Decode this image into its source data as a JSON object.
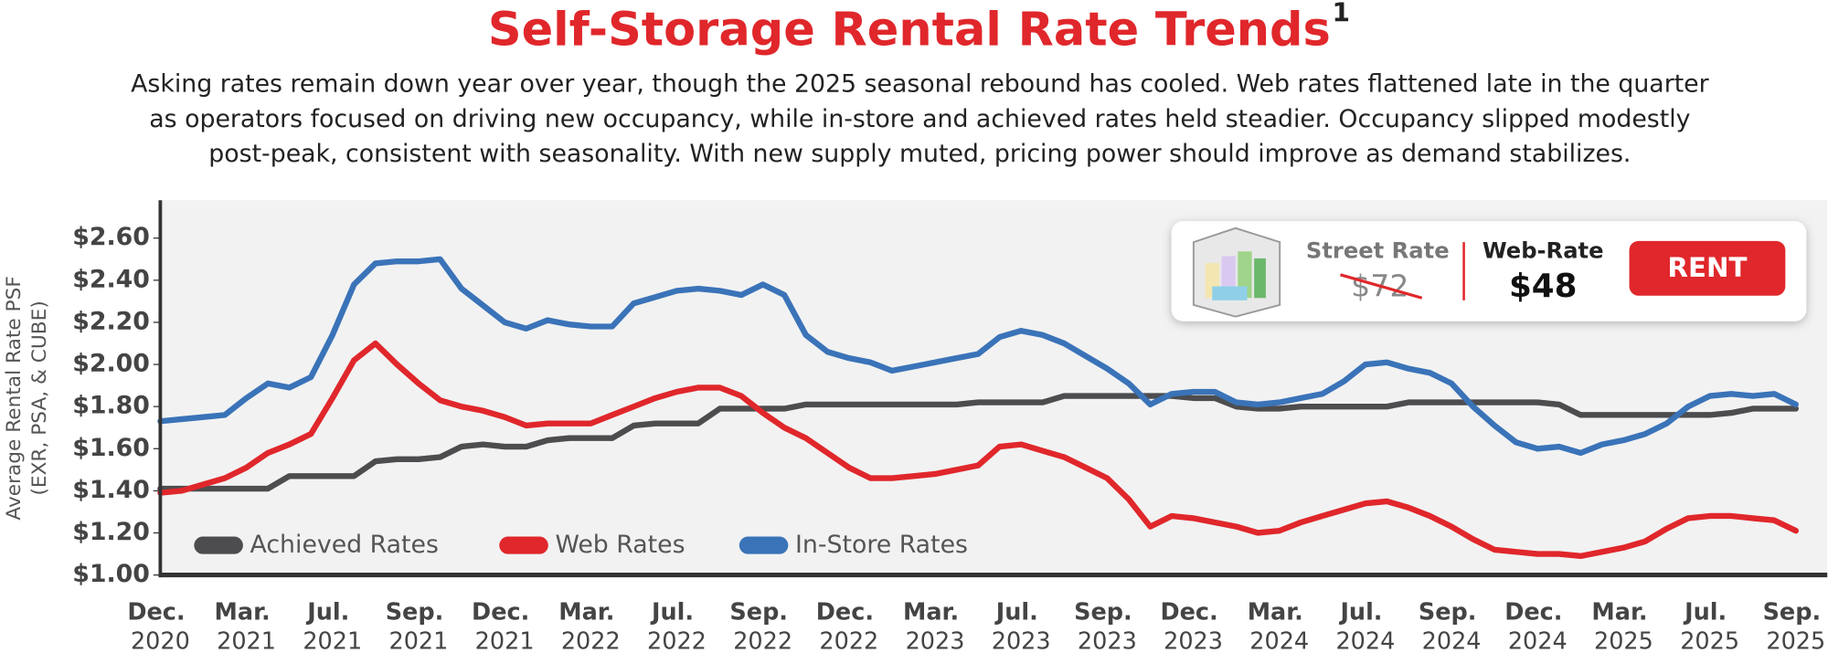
{
  "chart_data": {
    "type": "line",
    "title": "Self-Storage Rental Rate Trends",
    "title_note": "1",
    "subtitle_lines": [
      "Asking rates remain down year over year, though the 2025 seasonal rebound has cooled. Web rates flattened late in the quarter",
      "as operators focused on driving new occupancy, while in-store and achieved rates held steadier. Occupancy slipped modestly",
      "post-peak, consistent with seasonality. With new supply muted, pricing power should improve as demand stabilizes."
    ],
    "ylabel": "Average Rental Rate PSF",
    "ylabel_note": "(EXR, PSA, & CUBE)",
    "categories": [
      "Dec. 2020",
      null,
      null,
      null,
      "Mar. 2021",
      null,
      null,
      null,
      "Jul. 2021",
      null,
      null,
      null,
      "Sep. 2021",
      null,
      null,
      null,
      "Dec. 2021",
      null,
      null,
      null,
      "Mar. 2022",
      null,
      null,
      null,
      "Jul. 2022",
      null,
      null,
      null,
      "Sep. 2022",
      null,
      null,
      null,
      "Dec. 2022",
      null,
      null,
      null,
      "Mar. 2023",
      null,
      null,
      null,
      "Jul. 2023",
      null,
      null,
      null,
      "Sep. 2023",
      null,
      null,
      null,
      "Dec. 2023",
      null,
      null,
      null,
      "Mar. 2024",
      null,
      null,
      null,
      "Jul. 2024",
      null,
      null,
      null,
      "Sep. 2024",
      null,
      null,
      null,
      "Dec. 2024",
      null,
      null,
      null,
      "Mar. 2025",
      null,
      null,
      null,
      "Jul. 2025",
      null,
      null,
      null,
      "Sep. 2025"
    ],
    "series": [
      {
        "name": "Achieved Rates",
        "color": "#4d4d4f",
        "values": [
          1.41,
          1.41,
          1.41,
          1.41,
          1.41,
          1.41,
          1.47,
          1.47,
          1.47,
          1.47,
          1.54,
          1.55,
          1.55,
          1.56,
          1.61,
          1.62,
          1.61,
          1.61,
          1.64,
          1.65,
          1.65,
          1.65,
          1.71,
          1.72,
          1.72,
          1.72,
          1.79,
          1.79,
          1.79,
          1.79,
          1.81,
          1.81,
          1.81,
          1.81,
          1.81,
          1.81,
          1.81,
          1.81,
          1.82,
          1.82,
          1.82,
          1.82,
          1.85,
          1.85,
          1.85,
          1.85,
          1.85,
          1.85,
          1.84,
          1.84,
          1.8,
          1.79,
          1.79,
          1.8,
          1.8,
          1.8,
          1.8,
          1.8,
          1.82,
          1.82,
          1.82,
          1.82,
          1.82,
          1.82,
          1.82,
          1.81,
          1.76,
          1.76,
          1.76,
          1.76,
          1.76,
          1.76,
          1.76,
          1.77,
          1.79,
          1.79,
          1.79
        ]
      },
      {
        "name": "Web Rates",
        "color": "#e0272b",
        "values": [
          1.39,
          1.4,
          1.43,
          1.46,
          1.51,
          1.58,
          1.62,
          1.67,
          1.84,
          2.02,
          2.1,
          2.0,
          1.91,
          1.83,
          1.8,
          1.78,
          1.75,
          1.71,
          1.72,
          1.72,
          1.72,
          1.76,
          1.8,
          1.84,
          1.87,
          1.89,
          1.89,
          1.85,
          1.77,
          1.7,
          1.65,
          1.58,
          1.51,
          1.46,
          1.46,
          1.47,
          1.48,
          1.5,
          1.52,
          1.61,
          1.62,
          1.59,
          1.56,
          1.51,
          1.46,
          1.36,
          1.23,
          1.28,
          1.27,
          1.25,
          1.23,
          1.2,
          1.21,
          1.25,
          1.28,
          1.31,
          1.34,
          1.35,
          1.32,
          1.28,
          1.23,
          1.17,
          1.12,
          1.11,
          1.1,
          1.1,
          1.09,
          1.11,
          1.13,
          1.16,
          1.22,
          1.27,
          1.28,
          1.28,
          1.27,
          1.26,
          1.21
        ]
      },
      {
        "name": "In-Store Rates",
        "color": "#3a73b8",
        "values": [
          1.73,
          1.74,
          1.75,
          1.76,
          1.84,
          1.91,
          1.89,
          1.94,
          2.14,
          2.38,
          2.48,
          2.49,
          2.49,
          2.5,
          2.36,
          2.28,
          2.2,
          2.17,
          2.21,
          2.19,
          2.18,
          2.18,
          2.29,
          2.32,
          2.35,
          2.36,
          2.35,
          2.33,
          2.38,
          2.33,
          2.14,
          2.06,
          2.03,
          2.01,
          1.97,
          1.99,
          2.01,
          2.03,
          2.05,
          2.13,
          2.16,
          2.14,
          2.1,
          2.04,
          1.98,
          1.91,
          1.81,
          1.86,
          1.87,
          1.87,
          1.82,
          1.81,
          1.82,
          1.84,
          1.86,
          1.92,
          2.0,
          2.01,
          1.98,
          1.96,
          1.91,
          1.8,
          1.71,
          1.63,
          1.6,
          1.61,
          1.58,
          1.62,
          1.64,
          1.67,
          1.72,
          1.8,
          1.85,
          1.86,
          1.85,
          1.86,
          1.81
        ]
      }
    ],
    "ylim": [
      1.0,
      2.78
    ],
    "yticks": [
      {
        "value": 1.0,
        "label": "$1.00"
      },
      {
        "value": 1.2,
        "label": "$1.20"
      },
      {
        "value": 1.4,
        "label": "$1.40"
      },
      {
        "value": 1.6,
        "label": "$1.60"
      },
      {
        "value": 1.8,
        "label": "$1.80"
      },
      {
        "value": 2.0,
        "label": "$2.00"
      },
      {
        "value": 2.2,
        "label": "$2.20"
      },
      {
        "value": 2.4,
        "label": "$2.40"
      },
      {
        "value": 2.6,
        "label": "$2.60"
      }
    ],
    "grid": false,
    "legend": "bottom-left",
    "ad": {
      "street_rate_label": "Street Rate",
      "street_rate": "$72",
      "web_rate_label": "Web-Rate",
      "web_rate": "$48",
      "button": "RENT"
    }
  }
}
